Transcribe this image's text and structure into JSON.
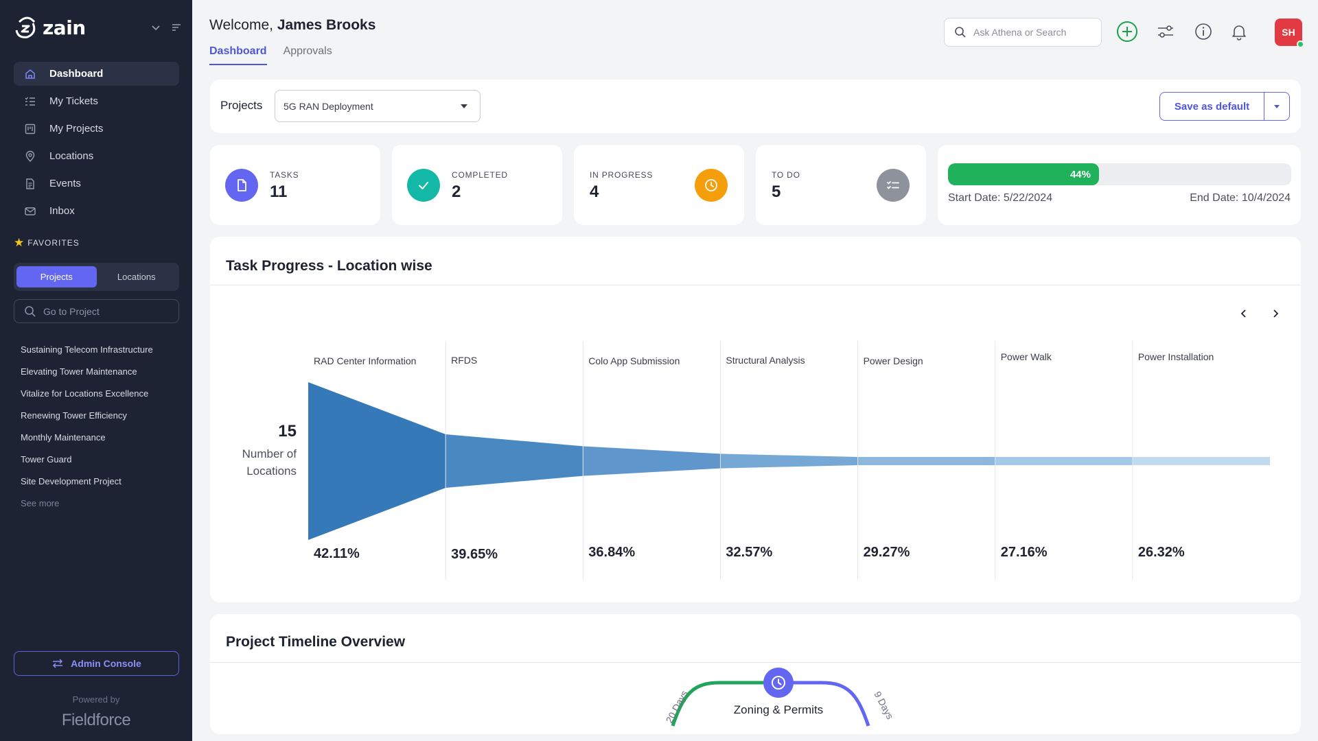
{
  "brand": {
    "name": "zain"
  },
  "sidebar": {
    "nav": [
      {
        "label": "Dashboard",
        "icon": "home-icon",
        "active": true
      },
      {
        "label": "My Tickets",
        "icon": "list-checks-icon",
        "active": false
      },
      {
        "label": "My Projects",
        "icon": "kanban-icon",
        "active": false
      },
      {
        "label": "Locations",
        "icon": "map-pin-icon",
        "active": false
      },
      {
        "label": "Events",
        "icon": "document-icon",
        "active": false
      },
      {
        "label": "Inbox",
        "icon": "mail-icon",
        "active": false
      }
    ],
    "favorites_title": "FAVORITES",
    "segment": {
      "projects": "Projects",
      "locations": "Locations",
      "selected": "Projects"
    },
    "search_placeholder": "Go to Project",
    "favorites": [
      "Sustaining Telecom Infrastructure",
      "Elevating Tower Maintenance",
      "Vitalize for Locations Excellence",
      "Renewing Tower Efficiency",
      "Monthly Maintenance",
      "Tower Guard",
      "Site Development Project"
    ],
    "see_more": "See more",
    "admin_console": "Admin Console",
    "powered_by": "Powered by",
    "powered_logo": "Fieldforce"
  },
  "header": {
    "welcome_prefix": "Welcome,",
    "user_name": "James Brooks",
    "tabs": [
      {
        "label": "Dashboard",
        "active": true
      },
      {
        "label": "Approvals",
        "active": false
      }
    ],
    "search_placeholder": "Ask Athena or Search",
    "avatar_initials": "SH",
    "accent": "#4f56d8"
  },
  "projects_bar": {
    "label": "Projects",
    "selected_project": "5G RAN Deployment",
    "save_default": "Save as default"
  },
  "stats": {
    "tasks": {
      "label": "TASKS",
      "value": "11",
      "color": "#6366f1"
    },
    "completed": {
      "label": "COMPLETED",
      "value": "2",
      "color": "#14b8a6"
    },
    "in_progress": {
      "label": "IN PROGRESS",
      "value": "4",
      "color": "#f59e0b"
    },
    "to_do": {
      "label": "TO DO",
      "value": "5",
      "color": "#8e929c"
    }
  },
  "progress": {
    "percent": 44,
    "percent_label": "44%",
    "start_date": "Start Date: 5/22/2024",
    "end_date": "End Date: 10/4/2024",
    "color": "#20b25a"
  },
  "task_progress": {
    "title": "Task Progress - Location wise",
    "total_value": "15",
    "total_label_1": "Number of",
    "total_label_2": "Locations"
  },
  "chart_data": {
    "type": "funnel",
    "categories": [
      "RAD Center Information",
      "RFDS",
      "Colo App Submission",
      "Structural Analysis",
      "Power Design",
      "Power Walk",
      "Power Installation"
    ],
    "values": [
      42.11,
      39.65,
      36.84,
      32.57,
      29.27,
      27.16,
      26.32
    ],
    "value_labels": [
      "42.11%",
      "39.65%",
      "36.84%",
      "32.57%",
      "29.27%",
      "27.16%",
      "26.32%"
    ],
    "colors": [
      "#3679b8",
      "#4a88c2",
      "#5f97cc",
      "#76a8d5",
      "#8db8de",
      "#a4c8e7",
      "#c0daef"
    ]
  },
  "timeline": {
    "title": "Project Timeline Overview",
    "stage": "Zoning & Permits",
    "left_duration": "20 Days",
    "right_duration": "9 Days"
  }
}
